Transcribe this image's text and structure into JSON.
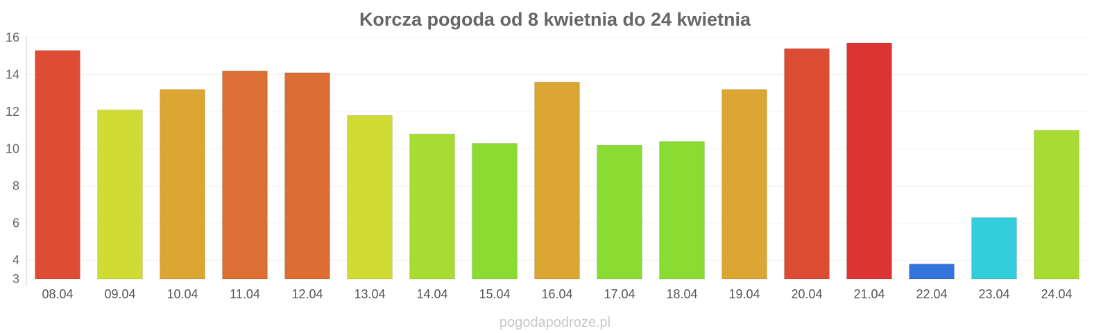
{
  "chart_data": {
    "type": "bar",
    "title": "Korcza pogoda od 8 kwietnia do 24 kwietnia",
    "xlabel": "",
    "ylabel": "",
    "categories": [
      "08.04",
      "09.04",
      "10.04",
      "11.04",
      "12.04",
      "13.04",
      "14.04",
      "15.04",
      "16.04",
      "17.04",
      "18.04",
      "19.04",
      "20.04",
      "21.04",
      "22.04",
      "23.04",
      "24.04"
    ],
    "values": [
      15.3,
      12.1,
      13.2,
      14.2,
      14.1,
      11.8,
      10.8,
      10.3,
      13.6,
      10.2,
      10.4,
      13.2,
      15.4,
      15.7,
      3.8,
      6.3,
      11.0
    ],
    "colors": [
      "#dd4c33",
      "#d0dc33",
      "#dca633",
      "#dc6f33",
      "#dc6e33",
      "#d0dc33",
      "#a9dc33",
      "#8adc33",
      "#dca633",
      "#8adc33",
      "#8adc33",
      "#dca633",
      "#dc4c33",
      "#dc3333",
      "#3373dc",
      "#33cddc",
      "#a9dc33"
    ],
    "ylim": [
      3,
      16
    ],
    "yticks": [
      "3",
      "4",
      "6",
      "8",
      "10",
      "12",
      "14",
      "16"
    ],
    "grid": true,
    "legend": "none"
  },
  "watermark": "pogodapodroze.pl"
}
